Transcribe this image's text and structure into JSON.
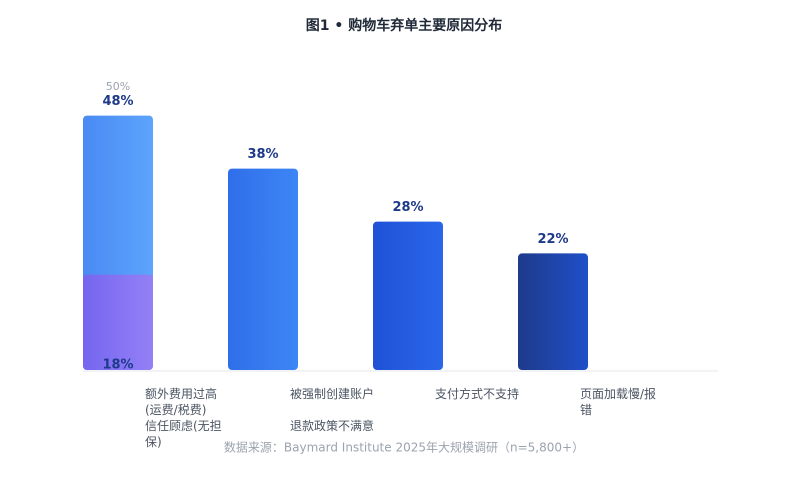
{
  "chart_data": {
    "type": "bar",
    "title": "图1 • 购物车弃单主要原因分布",
    "source": "数据来源：Baymard Institute 2025年大规模调研（n=5,800+）",
    "categories": [
      "额外费用过高(运费/税费)",
      "被强制创建账户",
      "支付方式不支持",
      "页面加载慢/报错"
    ],
    "annotations": [
      "信任顾虑(无担保)",
      "退款政策不满意"
    ],
    "values": [
      48,
      38,
      28,
      22
    ],
    "value_labels": [
      "48%",
      "38%",
      "28%",
      "22%"
    ],
    "colors": [
      [
        "#4a8af4",
        "#5ca4fc"
      ],
      [
        "#2f6ee9",
        "#3d86f6"
      ],
      [
        "#1f52d6",
        "#2a66ea"
      ],
      [
        "#1e3a8a",
        "#1f4fc9"
      ]
    ],
    "overlay": {
      "values": [
        18,
        null,
        null,
        null
      ],
      "value_labels": [
        "18%",
        null,
        null,
        null
      ],
      "color": [
        "#7a62ee",
        "#9a7cf6"
      ]
    },
    "ylim": [
      0,
      50
    ],
    "yticks": [
      {
        "value": 50,
        "label": "50%"
      }
    ]
  }
}
